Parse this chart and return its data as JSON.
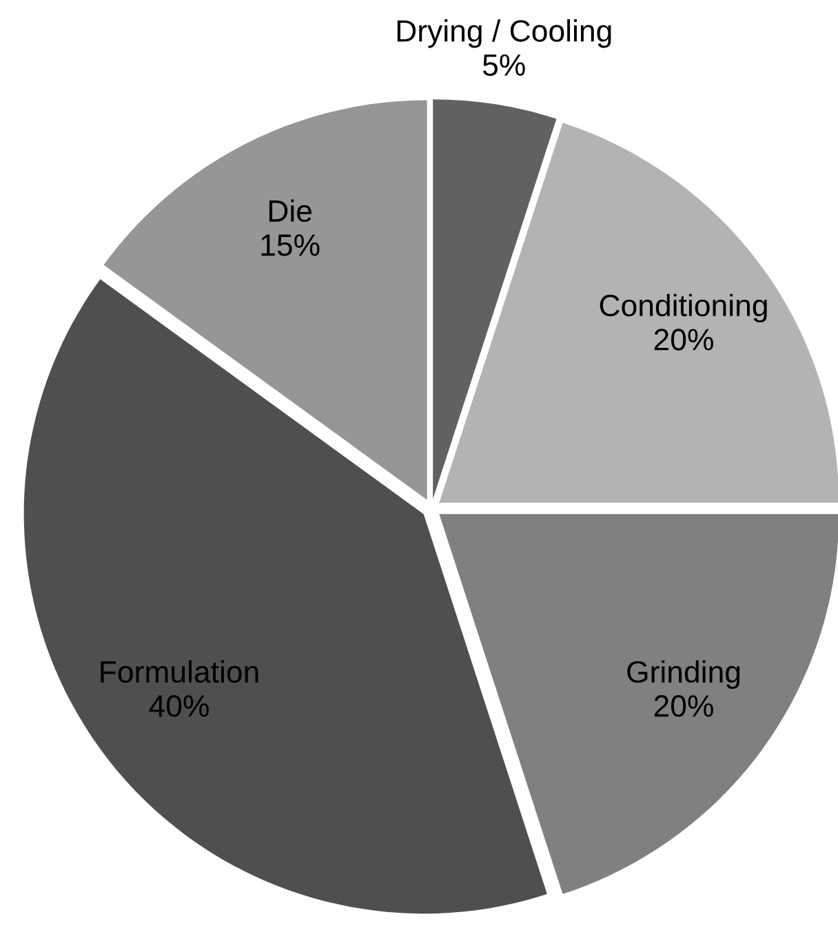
{
  "chart_data": {
    "type": "pie",
    "categories": [
      "Drying / Cooling",
      "Conditioning",
      "Grinding",
      "Formulation",
      "Die"
    ],
    "values": [
      5,
      20,
      20,
      40,
      15
    ],
    "value_labels": [
      "5%",
      "20%",
      "20%",
      "40%",
      "15%"
    ],
    "colors": [
      "#616161",
      "#b3b3b3",
      "#808080",
      "#4f4f4f",
      "#969696"
    ]
  }
}
